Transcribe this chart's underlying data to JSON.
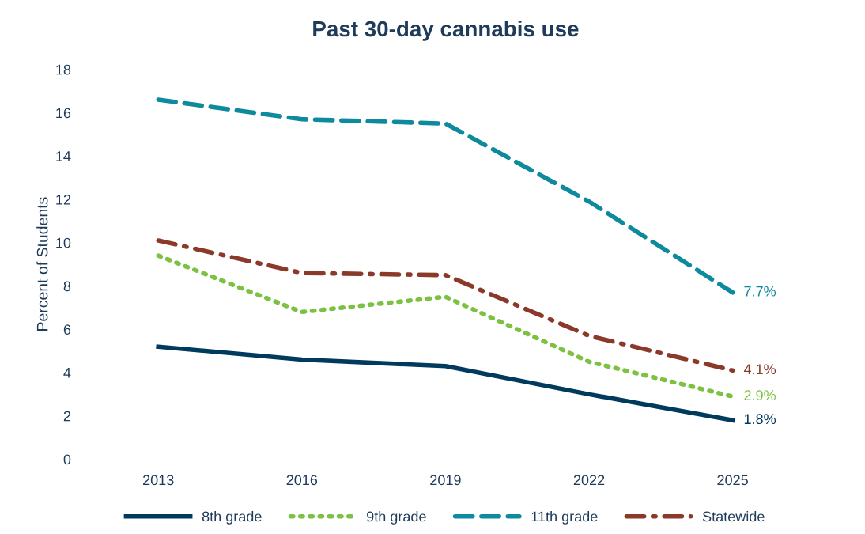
{
  "chart_data": {
    "type": "line",
    "title": "Past 30-day cannabis use",
    "ylabel": "Percent of Students",
    "categories": [
      "2013",
      "2016",
      "2019",
      "2022",
      "2025"
    ],
    "series": [
      {
        "name": "8th grade",
        "color": "#003a5d",
        "line_style": "solid",
        "values": [
          5.2,
          4.6,
          4.3,
          3.0,
          1.8
        ],
        "value_labels": [
          null,
          null,
          null,
          null,
          "1.8%"
        ]
      },
      {
        "name": "9th grade",
        "color": "#7dc142",
        "line_style": "dotted",
        "values": [
          9.4,
          6.8,
          7.5,
          4.5,
          2.9
        ],
        "value_labels": [
          null,
          null,
          null,
          null,
          "2.9%"
        ]
      },
      {
        "name": "11th grade",
        "color": "#0e8a9e",
        "line_style": "dashed",
        "values": [
          16.6,
          15.7,
          15.5,
          11.9,
          7.7
        ],
        "value_labels": [
          null,
          null,
          null,
          null,
          "7.7%"
        ]
      },
      {
        "name": "Statewide",
        "color": "#8b3a2a",
        "line_style": "dashdot",
        "values": [
          10.1,
          8.6,
          8.5,
          5.7,
          4.1
        ],
        "value_labels": [
          null,
          null,
          null,
          null,
          "4.1%"
        ]
      }
    ],
    "ylim": [
      0,
      18
    ],
    "yticks": [
      0,
      2,
      4,
      6,
      8,
      10,
      12,
      14,
      16,
      18
    ],
    "grid": false,
    "legend": "bottom",
    "marker": "none"
  }
}
